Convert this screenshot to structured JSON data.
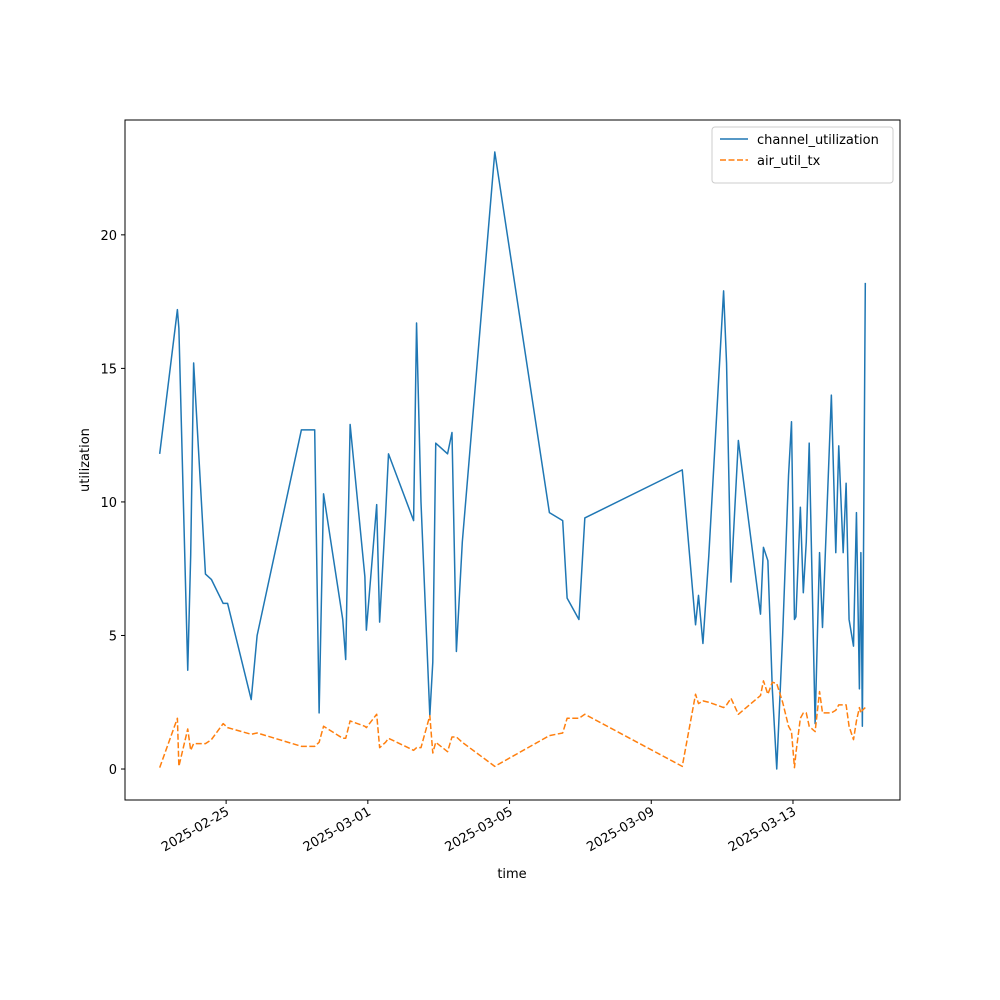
{
  "chart_data": {
    "type": "line",
    "xlabel": "time",
    "ylabel": "utilization",
    "x": [
      "2025-02-23T03:00",
      "2025-02-23T15:00",
      "2025-02-23T16:00",
      "2025-02-23T22:00",
      "2025-02-24T00:00",
      "2025-02-24T02:00",
      "2025-02-24T10:00",
      "2025-02-24T14:00",
      "2025-02-24T22:00",
      "2025-02-25T01:00",
      "2025-02-25T17:00",
      "2025-02-25T21:00",
      "2025-02-27T03:00",
      "2025-02-27T12:00",
      "2025-02-27T15:00",
      "2025-02-27T18:00",
      "2025-02-28T07:00",
      "2025-02-28T09:00",
      "2025-02-28T12:00",
      "2025-02-28T22:00",
      "2025-02-28T23:00",
      "2025-03-01T06:00",
      "2025-03-01T08:00",
      "2025-03-01T12:00",
      "2025-03-01T14:00",
      "2025-03-02T07:00",
      "2025-03-02T09:00",
      "2025-03-02T12:00",
      "2025-03-02T18:00",
      "2025-03-02T20:00",
      "2025-03-02T22:00",
      "2025-03-03T06:00",
      "2025-03-03T09:00",
      "2025-03-03T12:00",
      "2025-03-03T16:00",
      "2025-03-04T14:00",
      "2025-03-06T03:00",
      "2025-03-06T12:00",
      "2025-03-06T15:00",
      "2025-03-06T23:00",
      "2025-03-07T03:00",
      "2025-03-09T21:00",
      "2025-03-10T06:00",
      "2025-03-10T08:00",
      "2025-03-10T11:00",
      "2025-03-10T15:00",
      "2025-03-11T01:00",
      "2025-03-11T03:00",
      "2025-03-11T06:00",
      "2025-03-11T11:00",
      "2025-03-12T02:00",
      "2025-03-12T04:00",
      "2025-03-12T07:00",
      "2025-03-12T10:00",
      "2025-03-12T13:00",
      "2025-03-12T17:00",
      "2025-03-12T21:00",
      "2025-03-12T23:00",
      "2025-03-13T01:00",
      "2025-03-13T02:00",
      "2025-03-13T05:00",
      "2025-03-13T07:00",
      "2025-03-13T09:00",
      "2025-03-13T11:00",
      "2025-03-13T15:00",
      "2025-03-13T18:00",
      "2025-03-13T20:00",
      "2025-03-14T02:00",
      "2025-03-14T05:00",
      "2025-03-14T07:00",
      "2025-03-14T10:00",
      "2025-03-14T12:00",
      "2025-03-14T14:00",
      "2025-03-14T17:00",
      "2025-03-14T19:00",
      "2025-03-14T21:00",
      "2025-03-14T22:00",
      "2025-03-14T23:00",
      "2025-03-15T01:00"
    ],
    "series": [
      {
        "name": "channel_utilization",
        "color": "#1f77b4",
        "dash": false,
        "values": [
          11.8,
          17.2,
          16.5,
          3.7,
          8,
          15.2,
          7.3,
          7.1,
          6.2,
          6.2,
          2.6,
          5.0,
          12.7,
          12.7,
          2.1,
          10.3,
          5.6,
          4.1,
          12.9,
          7.2,
          5.2,
          9.9,
          5.5,
          9.5,
          11.8,
          9.3,
          16.7,
          10.0,
          2.0,
          4.0,
          12.2,
          11.8,
          12.6,
          4.4,
          8.5,
          23.1,
          9.6,
          9.3,
          6.4,
          5.6,
          9.4,
          11.2,
          5.4,
          6.5,
          4.7,
          8,
          17.9,
          15.2,
          7.0,
          12.3,
          5.8,
          8.3,
          7.8,
          3.0,
          0,
          5,
          11,
          13.0,
          5.6,
          5.7,
          9.8,
          6.6,
          8.5,
          12.2,
          1.7,
          8.1,
          5.3,
          14.0,
          8.1,
          12.1,
          8.1,
          10.7,
          5.6,
          4.6,
          9.6,
          3.0,
          8.1,
          1.6,
          18.2
        ]
      },
      {
        "name": "air_util_tx",
        "color": "#ff7f0e",
        "dash": true,
        "values": [
          0.05,
          1.9,
          0.1,
          1.5,
          0.7,
          0.95,
          0.95,
          1.1,
          1.7,
          1.55,
          1.3,
          1.35,
          0.85,
          0.85,
          1.0,
          1.6,
          1.15,
          1.15,
          1.8,
          1.6,
          1.55,
          2.05,
          0.8,
          1.0,
          1.15,
          0.7,
          0.8,
          0.8,
          2.0,
          0.6,
          1.0,
          0.65,
          1.2,
          1.2,
          1.0,
          0.1,
          1.25,
          1.35,
          1.9,
          1.9,
          2.05,
          0.1,
          2.8,
          2.45,
          2.55,
          2.5,
          2.3,
          2.4,
          2.65,
          2.05,
          2.75,
          3.3,
          2.8,
          3.25,
          3.2,
          2.5,
          1.6,
          1.4,
          0.05,
          0.6,
          1.9,
          2.1,
          2.1,
          1.6,
          1.4,
          2.9,
          2.1,
          2.1,
          2.2,
          2.4,
          2.4,
          2.4,
          1.6,
          1.1,
          1.8,
          2.3,
          2.1,
          2.2,
          2.3
        ]
      }
    ],
    "xlim": [
      "2025-02-22T03:30",
      "2025-03-16T00:30"
    ],
    "xticks": [
      "2025-02-25",
      "2025-03-01",
      "2025-03-05",
      "2025-03-09",
      "2025-03-13"
    ],
    "ylim": [
      -1.16,
      24.3
    ],
    "yticks": [
      0,
      5,
      10,
      15,
      20
    ],
    "grid": false,
    "legend": "upper right"
  }
}
